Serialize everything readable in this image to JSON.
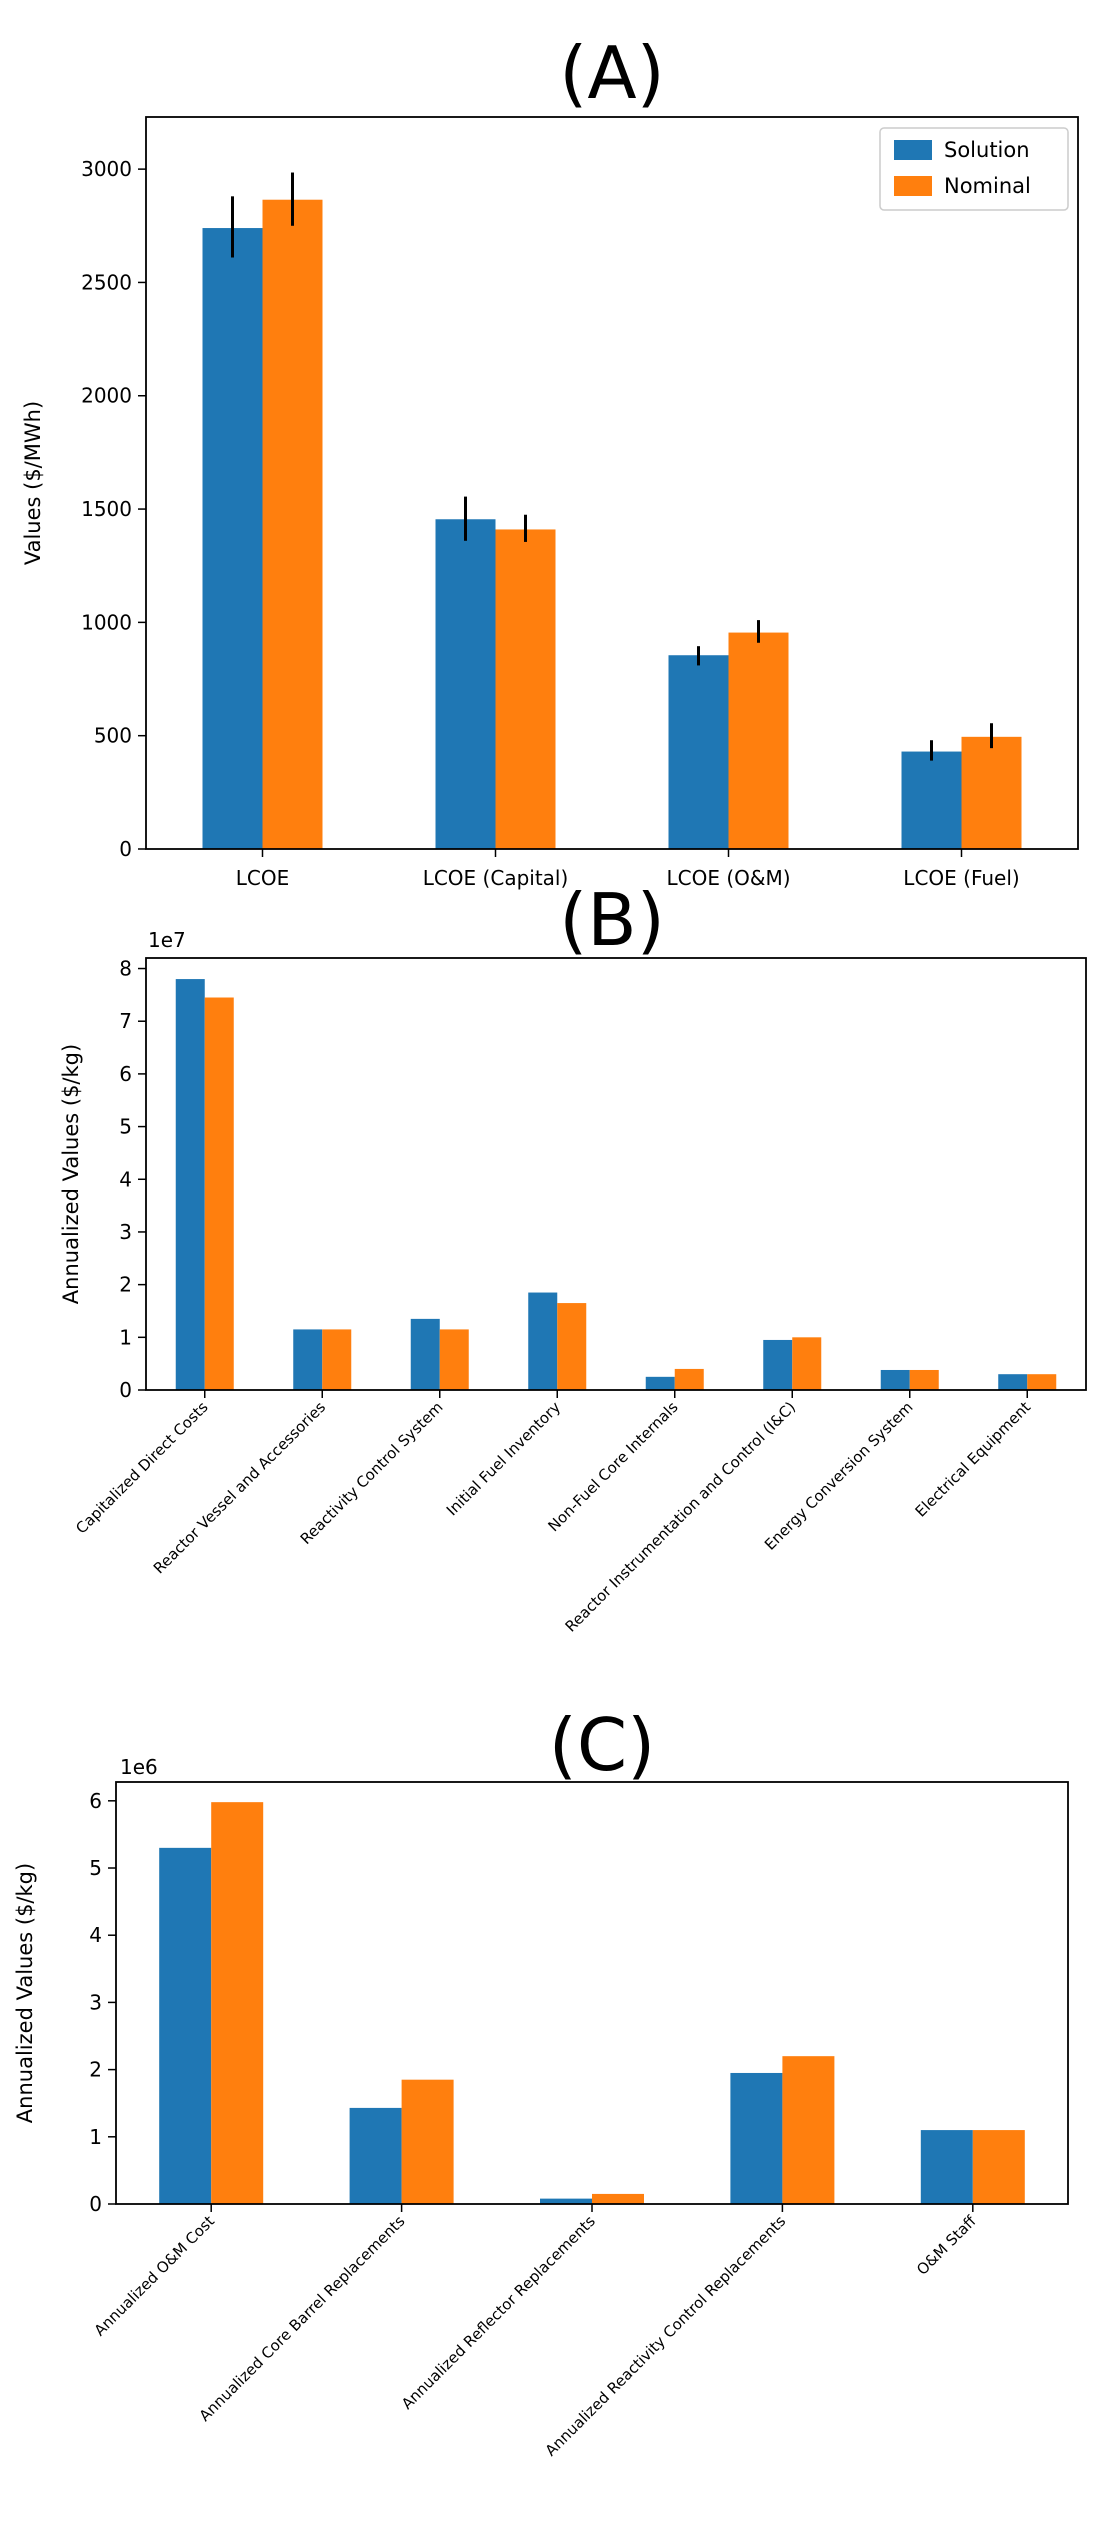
{
  "colors": {
    "solution": "#1f77b4",
    "nominal": "#ff7f0e",
    "axis": "#000000",
    "errorbar": "#000000"
  },
  "chart_data": [
    {
      "panel_label": "(A)",
      "type": "bar",
      "categories": [
        "LCOE",
        "LCOE (Capital)",
        "LCOE (O&M)",
        "LCOE (Fuel)"
      ],
      "series": [
        {
          "name": "Solution",
          "values": [
            2740,
            1455,
            855,
            430
          ],
          "error_low": [
            2610,
            1360,
            810,
            390
          ],
          "error_high": [
            2880,
            1555,
            895,
            480
          ]
        },
        {
          "name": "Nominal",
          "values": [
            2865,
            1410,
            955,
            495
          ],
          "error_low": [
            2750,
            1355,
            910,
            445
          ],
          "error_high": [
            2985,
            1475,
            1010,
            555
          ]
        }
      ],
      "legend": [
        "Solution",
        "Nominal"
      ],
      "legend_position": "top-right",
      "ylabel": "Values ($/MWh)",
      "xlabel": "",
      "ylim": [
        0,
        3230
      ],
      "yticks": [
        0,
        500,
        1000,
        1500,
        2000,
        2500,
        3000
      ],
      "yticklabels": [
        "0",
        "500",
        "1000",
        "1500",
        "2000",
        "2500",
        "3000"
      ],
      "offset_label": "",
      "grid": false
    },
    {
      "panel_label": "(B)",
      "type": "bar",
      "categories": [
        "Capitalized Direct Costs",
        "Reactor Vessel and Accessories",
        "Reactivity Control System",
        "Initial Fuel Inventory",
        "Non-Fuel Core Internals",
        "Reactor Instrumentation and Control (I&C)",
        "Energy Conversion System",
        "Electrical Equipment"
      ],
      "series": [
        {
          "name": "Solution",
          "values": [
            7.8,
            1.15,
            1.35,
            1.85,
            0.25,
            0.95,
            0.38,
            0.3
          ]
        },
        {
          "name": "Nominal",
          "values": [
            7.45,
            1.15,
            1.15,
            1.65,
            0.4,
            1.0,
            0.38,
            0.3
          ]
        }
      ],
      "ylabel": "Annualized Values ($/kg)",
      "xlabel": "",
      "ylim": [
        0,
        8.2
      ],
      "yticks": [
        0,
        1,
        2,
        3,
        4,
        5,
        6,
        7,
        8
      ],
      "yticklabels": [
        "0",
        "1",
        "2",
        "3",
        "4",
        "5",
        "6",
        "7",
        "8"
      ],
      "offset_label": "1e7",
      "grid": false
    },
    {
      "panel_label": "(C)",
      "type": "bar",
      "categories": [
        "Annualized O&M Cost",
        "Annualized Core Barrel Replacements",
        "Annualized Reflector Replacements",
        "Annualized Reactivity Control Replacements",
        "O&M Staff"
      ],
      "series": [
        {
          "name": "Solution",
          "values": [
            5.3,
            1.43,
            0.08,
            1.95,
            1.1
          ]
        },
        {
          "name": "Nominal",
          "values": [
            5.98,
            1.85,
            0.15,
            2.2,
            1.1
          ]
        }
      ],
      "ylabel": "Annualized Values ($/kg)",
      "xlabel": "",
      "ylim": [
        0,
        6.28
      ],
      "yticks": [
        0,
        1,
        2,
        3,
        4,
        5,
        6
      ],
      "yticklabels": [
        "0",
        "1",
        "2",
        "3",
        "4",
        "5",
        "6"
      ],
      "offset_label": "1e6",
      "grid": false
    }
  ]
}
